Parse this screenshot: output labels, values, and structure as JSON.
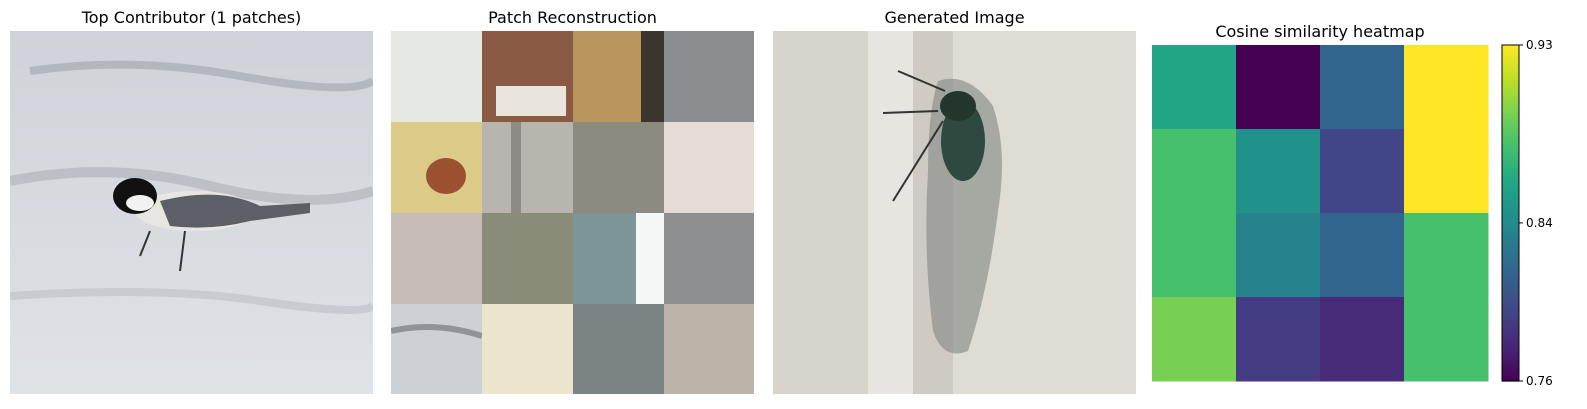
{
  "panels": {
    "top_contributor": {
      "title": "Top Contributor (1 patches)"
    },
    "patch_reconstruction": {
      "title": "Patch Reconstruction"
    },
    "generated_image": {
      "title": "Generated Image"
    }
  },
  "chart_data": {
    "type": "heatmap",
    "title": "Cosine similarity heatmap",
    "xlabel": "",
    "ylabel": "",
    "colormap": "viridis",
    "vmin": 0.76,
    "vmax": 0.93,
    "colorbar_ticks": [
      0.76,
      0.84,
      0.93
    ],
    "colorbar_tick_labels": [
      "0.76",
      "0.84",
      "0.93"
    ],
    "values": [
      [
        0.86,
        0.76,
        0.815,
        0.93
      ],
      [
        0.88,
        0.845,
        0.795,
        0.93
      ],
      [
        0.88,
        0.835,
        0.815,
        0.88
      ],
      [
        0.895,
        0.79,
        0.78,
        0.88
      ]
    ]
  }
}
